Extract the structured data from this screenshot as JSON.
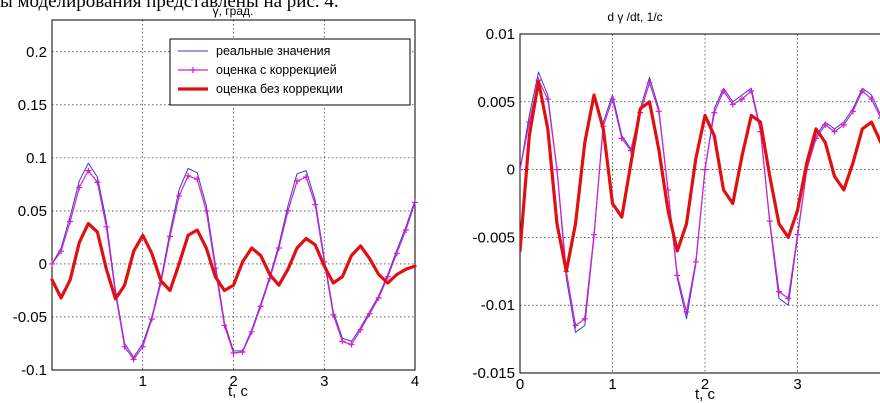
{
  "page": {
    "top_text": "ы моделирования представлены на рис. 4."
  },
  "colors": {
    "real": "#3a3acb",
    "corrected": "#d21fd2",
    "uncorrected": "#e01010",
    "grid": "#000000"
  },
  "chart_data": [
    {
      "type": "line",
      "title": "γ, град.",
      "xlabel": "t, c",
      "ylabel": "",
      "xlim": [
        0,
        4
      ],
      "ylim": [
        -0.1,
        0.23
      ],
      "xticks": [
        "1",
        "2",
        "3",
        "4"
      ],
      "xtick_values": [
        1,
        2,
        3,
        4
      ],
      "yticks": [
        "0.2",
        "0.15",
        "0.1",
        "0.05",
        "0",
        "-0.05",
        "-0.1"
      ],
      "ytick_values": [
        0.2,
        0.15,
        0.1,
        0.05,
        0,
        -0.05,
        -0.1
      ],
      "grid": true,
      "legend_position": "top-right",
      "legend": [
        "реальные значения",
        "оценка с коррекцией",
        "оценка без коррекции"
      ],
      "series": [
        {
          "name": "реальные значения",
          "x": [
            0,
            0.1,
            0.2,
            0.3,
            0.4,
            0.5,
            0.6,
            0.7,
            0.8,
            0.9,
            1.0,
            1.1,
            1.2,
            1.3,
            1.4,
            1.5,
            1.6,
            1.7,
            1.8,
            1.9,
            2.0,
            2.1,
            2.2,
            2.3,
            2.4,
            2.5,
            2.6,
            2.7,
            2.8,
            2.9,
            3.0,
            3.1,
            3.2,
            3.3,
            3.4,
            3.5,
            3.6,
            3.7,
            3.8,
            3.9,
            4.0
          ],
          "y": [
            0.0,
            0.015,
            0.045,
            0.078,
            0.095,
            0.082,
            0.04,
            -0.025,
            -0.075,
            -0.088,
            -0.075,
            -0.05,
            -0.015,
            0.03,
            0.07,
            0.09,
            0.086,
            0.055,
            0.0,
            -0.055,
            -0.082,
            -0.082,
            -0.062,
            -0.038,
            -0.012,
            0.018,
            0.055,
            0.085,
            0.088,
            0.06,
            0.005,
            -0.045,
            -0.07,
            -0.073,
            -0.06,
            -0.045,
            -0.03,
            -0.01,
            0.013,
            0.035,
            0.06
          ]
        },
        {
          "name": "оценка с коррекцией",
          "x": [
            0,
            0.1,
            0.2,
            0.3,
            0.4,
            0.5,
            0.6,
            0.7,
            0.8,
            0.9,
            1.0,
            1.1,
            1.2,
            1.3,
            1.4,
            1.5,
            1.6,
            1.7,
            1.8,
            1.9,
            2.0,
            2.1,
            2.2,
            2.3,
            2.4,
            2.5,
            2.6,
            2.7,
            2.8,
            2.9,
            3.0,
            3.1,
            3.2,
            3.3,
            3.4,
            3.5,
            3.6,
            3.7,
            3.8,
            3.9,
            4.0
          ],
          "y": [
            0.0,
            0.012,
            0.04,
            0.072,
            0.088,
            0.077,
            0.035,
            -0.028,
            -0.078,
            -0.09,
            -0.078,
            -0.052,
            -0.018,
            0.026,
            0.064,
            0.083,
            0.08,
            0.05,
            -0.004,
            -0.058,
            -0.084,
            -0.083,
            -0.064,
            -0.04,
            -0.014,
            0.015,
            0.05,
            0.078,
            0.082,
            0.056,
            0.002,
            -0.048,
            -0.073,
            -0.076,
            -0.062,
            -0.047,
            -0.032,
            -0.012,
            0.01,
            0.032,
            0.058
          ]
        },
        {
          "name": "оценка без коррекции",
          "x": [
            0,
            0.1,
            0.2,
            0.3,
            0.4,
            0.5,
            0.6,
            0.7,
            0.8,
            0.9,
            1.0,
            1.1,
            1.2,
            1.3,
            1.4,
            1.5,
            1.6,
            1.7,
            1.8,
            1.9,
            2.0,
            2.1,
            2.2,
            2.3,
            2.4,
            2.5,
            2.6,
            2.7,
            2.8,
            2.9,
            3.0,
            3.1,
            3.2,
            3.3,
            3.4,
            3.5,
            3.6,
            3.7,
            3.8,
            3.9,
            4.0
          ],
          "y": [
            -0.015,
            -0.032,
            -0.015,
            0.02,
            0.038,
            0.03,
            -0.005,
            -0.033,
            -0.02,
            0.012,
            0.027,
            0.01,
            -0.016,
            -0.025,
            0.0,
            0.027,
            0.032,
            0.015,
            -0.012,
            -0.025,
            -0.02,
            0.002,
            0.015,
            0.008,
            -0.01,
            -0.02,
            -0.005,
            0.015,
            0.024,
            0.018,
            -0.002,
            -0.018,
            -0.012,
            0.008,
            0.017,
            0.005,
            -0.01,
            -0.018,
            -0.01,
            -0.005,
            -0.002
          ]
        }
      ]
    },
    {
      "type": "line",
      "title": "d γ /dt, 1/c",
      "xlabel": "t, c",
      "ylabel": "",
      "xlim": [
        0,
        4
      ],
      "ylim": [
        -0.015,
        0.01
      ],
      "xticks": [
        "0",
        "1",
        "2",
        "3"
      ],
      "xtick_values": [
        0,
        1,
        2,
        3
      ],
      "yticks": [
        "0.01",
        "0.005",
        "0",
        "-0.005",
        "-0.01",
        "-0.015"
      ],
      "ytick_values": [
        0.01,
        0.005,
        0,
        -0.005,
        -0.01,
        -0.015
      ],
      "grid": true,
      "series": [
        {
          "name": "реальные значения",
          "x": [
            0,
            0.1,
            0.2,
            0.3,
            0.4,
            0.5,
            0.6,
            0.7,
            0.8,
            0.9,
            1.0,
            1.1,
            1.2,
            1.3,
            1.4,
            1.5,
            1.6,
            1.7,
            1.8,
            1.9,
            2.0,
            2.1,
            2.2,
            2.3,
            2.4,
            2.5,
            2.6,
            2.7,
            2.8,
            2.9,
            3.0,
            3.1,
            3.2,
            3.3,
            3.4,
            3.5,
            3.6,
            3.7,
            3.8,
            3.9,
            4.0
          ],
          "y": [
            0.0,
            0.004,
            0.0072,
            0.0055,
            0.0,
            -0.008,
            -0.012,
            -0.0115,
            -0.005,
            0.0035,
            0.0055,
            0.0025,
            0.0015,
            0.0045,
            0.0068,
            0.0045,
            -0.0015,
            -0.008,
            -0.011,
            -0.007,
            0.0,
            0.0045,
            0.006,
            0.005,
            0.0055,
            0.006,
            0.003,
            -0.004,
            -0.0095,
            -0.01,
            -0.005,
            0.0,
            0.0025,
            0.0035,
            0.003,
            0.0035,
            0.0045,
            0.006,
            0.0055,
            0.004,
            0.0045
          ]
        },
        {
          "name": "оценка с коррекцией",
          "x": [
            0,
            0.1,
            0.2,
            0.3,
            0.4,
            0.5,
            0.6,
            0.7,
            0.8,
            0.9,
            1.0,
            1.1,
            1.2,
            1.3,
            1.4,
            1.5,
            1.6,
            1.7,
            1.8,
            1.9,
            2.0,
            2.1,
            2.2,
            2.3,
            2.4,
            2.5,
            2.6,
            2.7,
            2.8,
            2.9,
            3.0,
            3.1,
            3.2,
            3.3,
            3.4,
            3.5,
            3.6,
            3.7,
            3.8,
            3.9,
            4.0
          ],
          "y": [
            0.0,
            0.0035,
            0.0066,
            0.0052,
            0.0,
            -0.0075,
            -0.0115,
            -0.011,
            -0.0048,
            0.0032,
            0.0052,
            0.0023,
            0.0014,
            0.0042,
            0.0064,
            0.0043,
            -0.0015,
            -0.0078,
            -0.0105,
            -0.0068,
            0.0,
            0.0042,
            0.0058,
            0.0048,
            0.0052,
            0.0058,
            0.0028,
            -0.0038,
            -0.009,
            -0.0095,
            -0.0048,
            0.0,
            0.0023,
            0.0033,
            0.0028,
            0.0033,
            0.0043,
            0.0058,
            0.0052,
            0.0038,
            0.0042
          ]
        },
        {
          "name": "оценка без коррекции",
          "x": [
            0,
            0.1,
            0.2,
            0.3,
            0.4,
            0.5,
            0.6,
            0.7,
            0.8,
            0.9,
            1.0,
            1.1,
            1.2,
            1.3,
            1.4,
            1.5,
            1.6,
            1.7,
            1.8,
            1.9,
            2.0,
            2.1,
            2.2,
            2.3,
            2.4,
            2.5,
            2.6,
            2.7,
            2.8,
            2.9,
            3.0,
            3.1,
            3.2,
            3.3,
            3.4,
            3.5,
            3.6,
            3.7,
            3.8,
            3.9,
            4.0
          ],
          "y": [
            -0.006,
            0.0025,
            0.0065,
            0.003,
            -0.004,
            -0.0075,
            -0.004,
            0.002,
            0.0055,
            0.003,
            -0.0025,
            -0.0035,
            0.0005,
            0.0045,
            0.005,
            0.0015,
            -0.003,
            -0.006,
            -0.004,
            0.0008,
            0.004,
            0.0025,
            -0.0015,
            -0.0025,
            0.001,
            0.004,
            0.0035,
            -0.0005,
            -0.004,
            -0.005,
            -0.003,
            0.0005,
            0.003,
            0.002,
            -0.0005,
            -0.0015,
            0.0005,
            0.003,
            0.0035,
            0.002,
            0.003
          ]
        }
      ]
    }
  ]
}
